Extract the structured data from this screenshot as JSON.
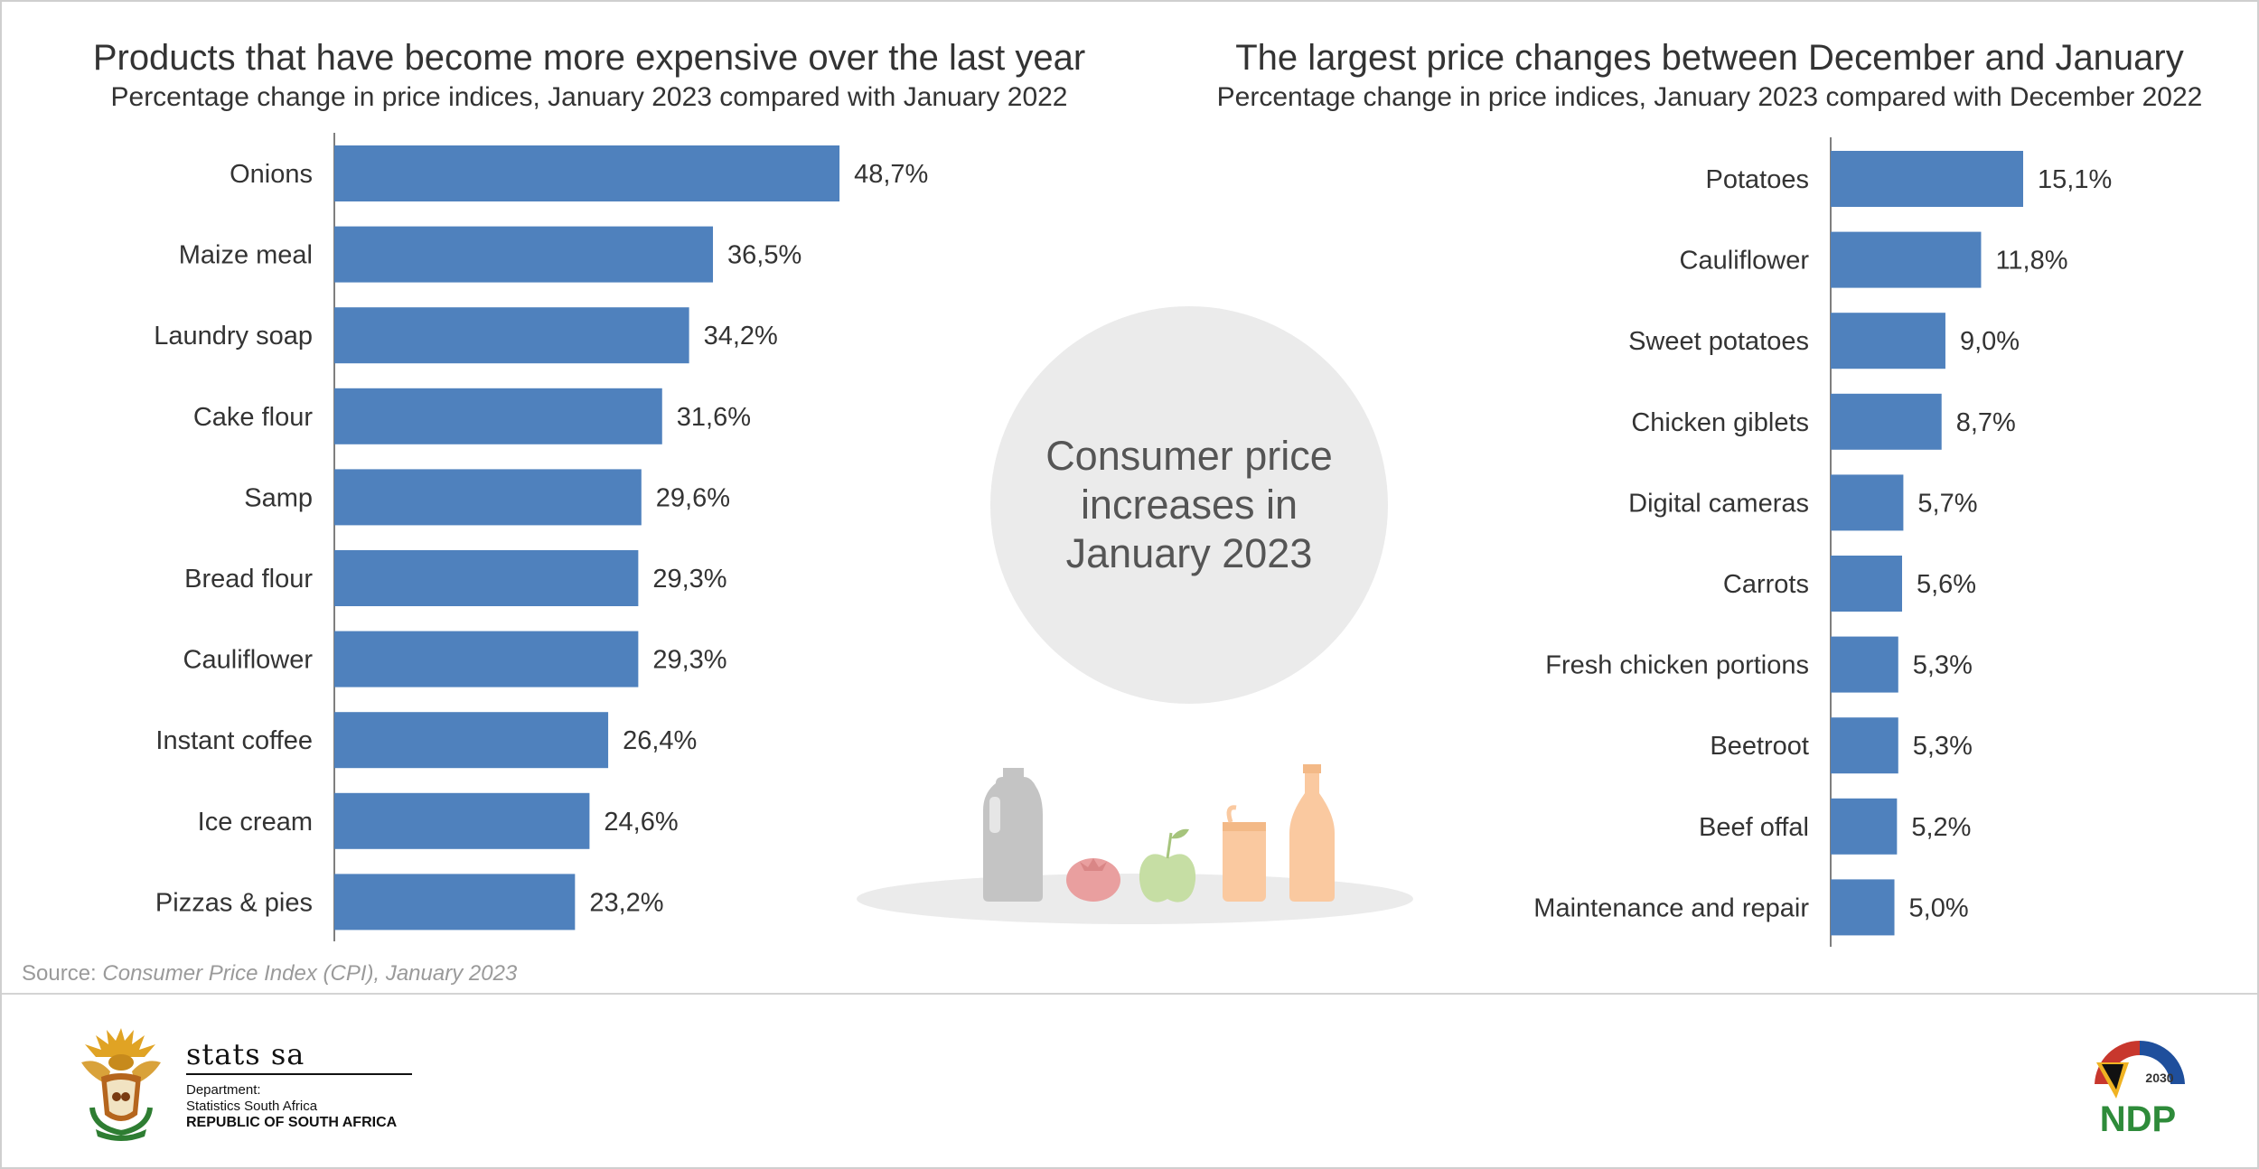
{
  "chart_data": [
    {
      "type": "bar",
      "orientation": "horizontal",
      "title": "Products that have become more expensive over the last year",
      "subtitle": "Percentage change in price indices, January 2023 compared with January 2022",
      "categories": [
        "Onions",
        "Maize meal",
        "Laundry soap",
        "Cake flour",
        "Samp",
        "Bread flour",
        "Cauliflower",
        "Instant coffee",
        "Ice cream",
        "Pizzas & pies"
      ],
      "values": [
        48.7,
        36.5,
        34.2,
        31.6,
        29.6,
        29.3,
        29.3,
        26.4,
        24.6,
        23.2
      ],
      "data_labels": [
        "48,7%",
        "36,5%",
        "34,2%",
        "31,6%",
        "29,6%",
        "29,3%",
        "29,3%",
        "26,4%",
        "24,6%",
        "23,2%"
      ],
      "xlim": [
        0,
        50
      ],
      "grid": false,
      "bar_color": "#4f81bd"
    },
    {
      "type": "bar",
      "orientation": "horizontal",
      "title": "The largest price changes between December and January",
      "subtitle": "Percentage change in price indices, January 2023 compared with December 2022",
      "categories": [
        "Potatoes",
        "Cauliflower",
        "Sweet potatoes",
        "Chicken giblets",
        "Digital cameras",
        "Carrots",
        "Fresh chicken portions",
        "Beetroot",
        "Beef offal",
        "Maintenance and repair"
      ],
      "values": [
        15.1,
        11.8,
        9.0,
        8.7,
        5.7,
        5.6,
        5.3,
        5.3,
        5.2,
        5.0
      ],
      "data_labels": [
        "15,1%",
        "11,8%",
        "9,0%",
        "8,7%",
        "5,7%",
        "5,6%",
        "5,3%",
        "5,3%",
        "5,2%",
        "5,0%"
      ],
      "xlim": [
        0,
        15.1
      ],
      "grid": false,
      "bar_color": "#4f81bd"
    }
  ],
  "center": {
    "lines": [
      "Consumer price",
      "increases in",
      "January 2023"
    ]
  },
  "source": {
    "label": "Source:",
    "text": "Consumer Price Index (CPI), January 2023"
  },
  "logo": {
    "name": "stats sa",
    "line1": "Department:",
    "line2": "Statistics South Africa",
    "line3": "REPUBLIC OF SOUTH AFRICA"
  },
  "ndp": {
    "year": "2030",
    "text": "NDP"
  },
  "colors": {
    "bar": "#4f81bd",
    "circle": "#ebebeb",
    "bottle_grey": "#c4c4c4",
    "tomato": "#e99f9f",
    "apple": "#c6dea4",
    "orange_items": "#fac9a0",
    "ndp_green": "#2e8b3a"
  }
}
